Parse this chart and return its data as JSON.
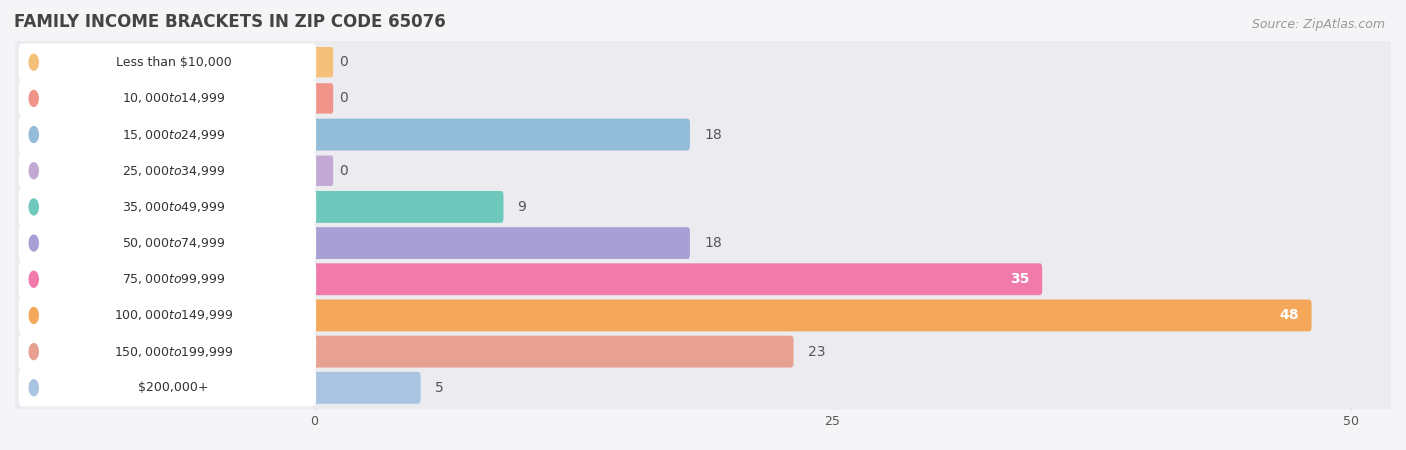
{
  "title": "FAMILY INCOME BRACKETS IN ZIP CODE 65076",
  "source": "Source: ZipAtlas.com",
  "categories": [
    "Less than $10,000",
    "$10,000 to $14,999",
    "$15,000 to $24,999",
    "$25,000 to $34,999",
    "$35,000 to $49,999",
    "$50,000 to $74,999",
    "$75,000 to $99,999",
    "$100,000 to $149,999",
    "$150,000 to $199,999",
    "$200,000+"
  ],
  "values": [
    0,
    0,
    18,
    0,
    9,
    18,
    35,
    48,
    23,
    5
  ],
  "bar_colors": [
    "#f5c07a",
    "#f0948a",
    "#93bcd9",
    "#c4a8d4",
    "#6ec9bc",
    "#a8a0d4",
    "#f07aaa",
    "#f5a85a",
    "#e8a090",
    "#a8c4e0"
  ],
  "xlim": [
    0,
    50
  ],
  "xticks": [
    0,
    25,
    50
  ],
  "background_color": "#f5f5f8",
  "row_bg_color": "#ebebf0",
  "title_fontsize": 12,
  "source_fontsize": 9,
  "value_fontsize": 10,
  "cat_fontsize": 9,
  "bar_height": 0.72
}
